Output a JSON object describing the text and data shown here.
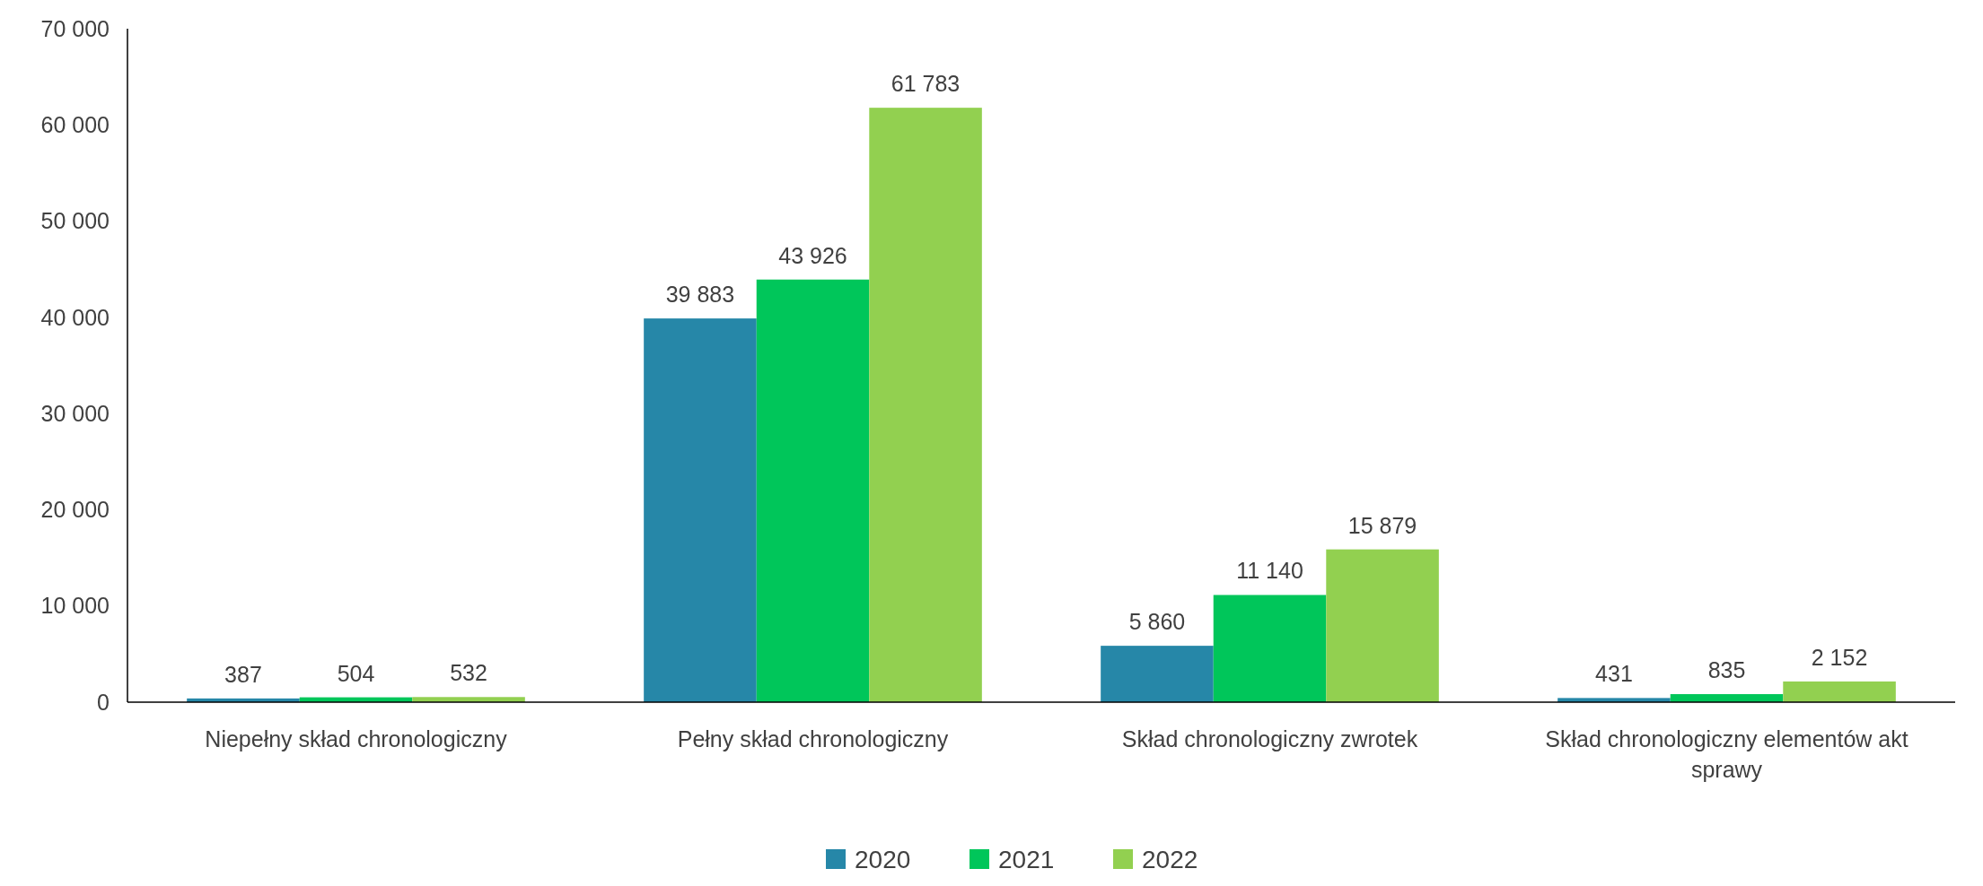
{
  "chart_data": {
    "type": "bar",
    "categories": [
      "Niepełny skład chronologiczny",
      "Pełny skład chronologiczny",
      "Skład chronologiczny zwrotek",
      "Skład chronologiczny elementów akt sprawy"
    ],
    "series": [
      {
        "name": "2020",
        "color": "#2687a8",
        "values": [
          387,
          39883,
          5860,
          431
        ],
        "value_labels": [
          "387",
          "39 883",
          "5 860",
          "431"
        ]
      },
      {
        "name": "2021",
        "color": "#00c65a",
        "values": [
          504,
          43926,
          11140,
          835
        ],
        "value_labels": [
          "504",
          "43 926",
          "11 140",
          "835"
        ]
      },
      {
        "name": "2022",
        "color": "#92d050",
        "values": [
          532,
          61783,
          15879,
          2152
        ],
        "value_labels": [
          "532",
          "61 783",
          "15 879",
          "2 152"
        ]
      }
    ],
    "ylim": [
      0,
      70000
    ],
    "yticks": [
      {
        "value": 0,
        "label": "0"
      },
      {
        "value": 10000,
        "label": "10 000"
      },
      {
        "value": 20000,
        "label": "20 000"
      },
      {
        "value": 30000,
        "label": "30 000"
      },
      {
        "value": 40000,
        "label": "40 000"
      },
      {
        "value": 50000,
        "label": "50 000"
      },
      {
        "value": 60000,
        "label": "60 000"
      },
      {
        "value": 70000,
        "label": "70 000"
      }
    ],
    "grid": false,
    "legend": "bottom"
  }
}
